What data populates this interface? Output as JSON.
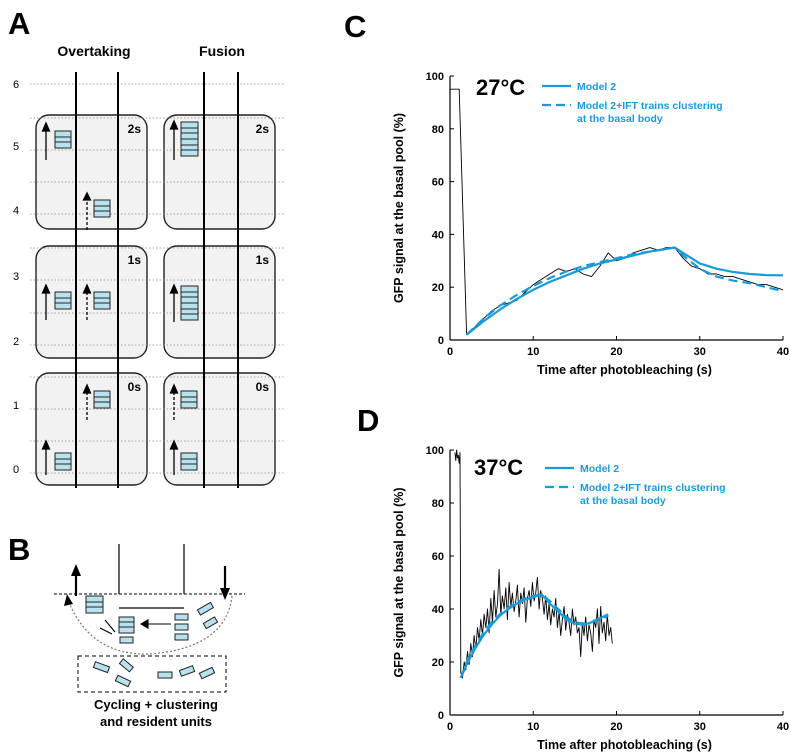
{
  "panels": {
    "A": {
      "letter": "A",
      "columns": [
        "Overtaking",
        "Fusion"
      ],
      "row_numbers": [
        "6",
        "5",
        "4",
        "3",
        "2",
        "1",
        "0"
      ],
      "time_labels": [
        "2s",
        "1s",
        "0s"
      ]
    },
    "B": {
      "letter": "B",
      "caption": [
        "Cycling + clustering",
        "and resident units"
      ]
    },
    "C": {
      "letter": "C",
      "temperature": "27°C"
    },
    "D": {
      "letter": "D",
      "temperature": "37°C"
    }
  },
  "colors": {
    "model_line": "#1a9bd7",
    "train_fill": "#b9e2ef",
    "box_fill": "#f2f2f2",
    "data_line": "#000000"
  },
  "chart_data": [
    {
      "id": "C",
      "type": "line",
      "title": "27°C",
      "xlabel": "Time after photobleaching (s)",
      "ylabel": "GFP signal at the basal pool (%)",
      "xlim": [
        0,
        40
      ],
      "ylim": [
        0,
        100
      ],
      "xticks": [
        0,
        10,
        20,
        30,
        40
      ],
      "yticks": [
        0,
        20,
        40,
        60,
        80,
        100
      ],
      "legend_position": "top-right",
      "series": [
        {
          "name": "",
          "style": "data",
          "color": "#000000",
          "x": [
            0,
            1,
            1.1,
            2,
            3,
            4,
            5,
            6,
            7,
            8,
            9,
            10,
            11,
            12,
            13,
            14,
            15,
            16,
            17,
            18,
            19,
            20,
            21,
            22,
            23,
            24,
            25,
            26,
            27,
            28,
            29,
            30,
            31,
            32,
            33,
            34,
            35,
            36,
            37,
            38,
            39,
            40
          ],
          "y": [
            95,
            95,
            95,
            2,
            5,
            8,
            11,
            13,
            14,
            15,
            18,
            21,
            23,
            25,
            27,
            26,
            27,
            25,
            24,
            28,
            33,
            30,
            31,
            33,
            34,
            35,
            34,
            35,
            35,
            31,
            28,
            27,
            25,
            25,
            24,
            24,
            23,
            22,
            21,
            21,
            20,
            19
          ]
        },
        {
          "name": "Model 2",
          "style": "solid",
          "color": "#1a9bd7",
          "x": [
            2,
            4,
            6,
            8,
            10,
            12,
            14,
            16,
            18,
            20,
            22,
            24,
            26,
            27,
            28,
            30,
            32,
            34,
            36,
            38,
            40
          ],
          "y": [
            2,
            7,
            11.5,
            15.5,
            19,
            22,
            24.5,
            27,
            29,
            30.5,
            32,
            33.5,
            34.5,
            35,
            33,
            29,
            27,
            25.8,
            25,
            24.6,
            24.5
          ]
        },
        {
          "name": "Model 2+IFT trains clustering at the basal body",
          "style": "dashed",
          "color": "#1a9bd7",
          "x": [
            2,
            4,
            6,
            8,
            10,
            12,
            14,
            16,
            18,
            20,
            22,
            24,
            26,
            27,
            28,
            30,
            32,
            34,
            36,
            38,
            40
          ],
          "y": [
            2,
            8,
            13,
            17,
            20.5,
            23.5,
            26,
            28,
            29.5,
            31,
            32.5,
            33.5,
            34.5,
            35,
            32,
            27,
            24,
            22.5,
            21.5,
            20,
            18.5
          ]
        }
      ]
    },
    {
      "id": "D",
      "type": "line",
      "title": "37°C",
      "xlabel": "Time after photobleaching (s)",
      "ylabel": "GFP signal at the basal pool (%)",
      "xlim": [
        0,
        40
      ],
      "ylim": [
        0,
        100
      ],
      "xticks": [
        0,
        10,
        20,
        30,
        40
      ],
      "yticks": [
        0,
        20,
        40,
        60,
        80,
        100
      ],
      "legend_position": "top-right",
      "series": [
        {
          "name": "",
          "style": "data",
          "color": "#000000",
          "x": [
            0.6,
            0.7,
            0.8,
            0.9,
            1.0,
            1.1,
            1.2,
            1.3,
            1.5,
            1.7,
            1.9,
            2.1,
            2.3,
            2.5,
            2.7,
            2.9,
            3.1,
            3.3,
            3.5,
            3.7,
            3.9,
            4.1,
            4.3,
            4.5,
            4.7,
            4.9,
            5.1,
            5.3,
            5.5,
            5.7,
            5.9,
            6.1,
            6.3,
            6.5,
            6.7,
            6.9,
            7.1,
            7.3,
            7.5,
            7.7,
            7.9,
            8.1,
            8.3,
            8.5,
            8.7,
            8.9,
            9.1,
            9.3,
            9.5,
            9.7,
            9.9,
            10.1,
            10.3,
            10.5,
            10.7,
            10.9,
            11.1,
            11.3,
            11.5,
            11.7,
            11.9,
            12.1,
            12.3,
            12.5,
            12.7,
            12.9,
            13.1,
            13.3,
            13.5,
            13.7,
            13.9,
            14.1,
            14.3,
            14.5,
            14.7,
            14.9,
            15.1,
            15.3,
            15.5,
            15.7,
            15.9,
            16.1,
            16.3,
            16.5,
            16.7,
            16.9,
            17.1,
            17.3,
            17.5,
            17.7,
            17.9,
            18.1,
            18.3,
            18.5,
            18.7,
            18.9,
            19.1,
            19.3,
            19.5
          ],
          "y": [
            99,
            96,
            100,
            97,
            98,
            95,
            99,
            16,
            14,
            20,
            17,
            24,
            19,
            27,
            22,
            30,
            25,
            33,
            28,
            36,
            30,
            38,
            33,
            40,
            31,
            44,
            35,
            47,
            37,
            42,
            55,
            38,
            45,
            40,
            48,
            36,
            50,
            41,
            46,
            39,
            43,
            49,
            37,
            46,
            42,
            48,
            35,
            44,
            47,
            41,
            50,
            43,
            46,
            52,
            40,
            47,
            44,
            38,
            45,
            36,
            42,
            34,
            40,
            37,
            44,
            33,
            39,
            30,
            36,
            41,
            32,
            38,
            35,
            30,
            40,
            34,
            37,
            31,
            33,
            22,
            35,
            30,
            37,
            28,
            34,
            31,
            24,
            36,
            33,
            40,
            27,
            41,
            31,
            35,
            28,
            38,
            30,
            33,
            27
          ]
        },
        {
          "name": "Model 2",
          "style": "solid",
          "color": "#1a9bd7",
          "x": [
            1.3,
            2,
            3,
            4,
            5,
            6,
            7,
            8,
            9,
            10,
            11,
            12,
            13,
            14,
            15,
            16,
            17,
            18,
            19
          ],
          "y": [
            14,
            19,
            25,
            30,
            34,
            37.5,
            40,
            42,
            43.5,
            44.5,
            45.5,
            42,
            39,
            36,
            34.5,
            34,
            35,
            36.5,
            38
          ]
        },
        {
          "name": "Model 2+IFT trains clustering at the basal body",
          "style": "dashed",
          "color": "#1a9bd7",
          "x": [
            1.3,
            2,
            3,
            4,
            5,
            6,
            7,
            8,
            9,
            10,
            11,
            12,
            13,
            14,
            15,
            16,
            17,
            18,
            19
          ],
          "y": [
            14,
            20,
            26,
            31,
            35,
            38,
            40.5,
            42.5,
            44,
            45,
            45.5,
            43,
            40,
            37,
            35,
            34.5,
            35,
            36,
            37.5
          ]
        }
      ]
    }
  ]
}
